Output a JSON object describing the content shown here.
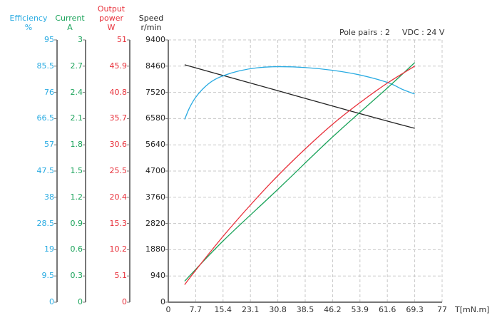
{
  "chart_data": {
    "type": "line",
    "title": "",
    "annotations": {
      "pole_pairs": "Pole pairs : 2",
      "vdc": "VDC : 24 V"
    },
    "xlabel": "T[mN.m]",
    "x_ticks": [
      "0",
      "7.7",
      "15.4",
      "23.1",
      "30.8",
      "38.5",
      "46.2",
      "53.9",
      "61.6",
      "69.3",
      "77"
    ],
    "xlim": [
      0,
      77
    ],
    "grid": true,
    "axes": [
      {
        "id": "efficiency",
        "title": [
          "Efficiency",
          "%"
        ],
        "color": "#29abe2",
        "max": 95,
        "ticks": [
          "0",
          "9.5",
          "19",
          "28.5",
          "38",
          "47.5",
          "57",
          "66.5",
          "76",
          "85.5",
          "95"
        ]
      },
      {
        "id": "current",
        "title": [
          "Current",
          "A"
        ],
        "color": "#1aa35a",
        "max": 3,
        "ticks": [
          "0",
          "0.3",
          "0.6",
          "0.9",
          "1.2",
          "1.5",
          "1.8",
          "2.1",
          "2.4",
          "2.7",
          "3"
        ]
      },
      {
        "id": "power",
        "title": [
          "Output",
          "power",
          "W"
        ],
        "color": "#e8303a",
        "max": 51,
        "ticks": [
          "0",
          "5.1",
          "10.2",
          "15.3",
          "20.4",
          "25.5",
          "30.6",
          "35.7",
          "40.8",
          "45.9",
          "51"
        ]
      },
      {
        "id": "speed",
        "title": [
          "Speed",
          "r/min"
        ],
        "color": "#222222",
        "max": 9400,
        "ticks": [
          "0",
          "940",
          "1880",
          "2820",
          "3760",
          "4700",
          "5640",
          "6580",
          "7520",
          "8460",
          "9400"
        ]
      }
    ],
    "series": [
      {
        "name": "Speed",
        "axis": "speed",
        "color": "#222222",
        "x": [
          4.6,
          15.4,
          30.8,
          46.2,
          61.6,
          69.3
        ],
        "y": [
          8510,
          8125,
          7580,
          7030,
          6490,
          6230
        ]
      },
      {
        "name": "Efficiency",
        "axis": "efficiency",
        "color": "#29abe2",
        "x": [
          4.6,
          6,
          7.7,
          10,
          12.5,
          15.4,
          20,
          25,
          30.8,
          38.5,
          46.2,
          53.9,
          61.6,
          66,
          69.3
        ],
        "y": [
          66.2,
          70.5,
          74.2,
          77.6,
          80.2,
          82.0,
          83.8,
          84.9,
          85.3,
          85.0,
          84.0,
          82.3,
          79.6,
          77.0,
          75.4
        ]
      },
      {
        "name": "Current",
        "axis": "current",
        "color": "#1aa35a",
        "x": [
          4.6,
          15.4,
          30.8,
          46.2,
          61.6,
          69.3
        ],
        "y": [
          0.24,
          0.7,
          1.29,
          1.89,
          2.45,
          2.74
        ]
      },
      {
        "name": "Output power",
        "axis": "power",
        "color": "#e8303a",
        "x": [
          4.6,
          7.7,
          15.4,
          23.1,
          30.8,
          38.5,
          46.2,
          53.9,
          61.6,
          69.3
        ],
        "y": [
          3.4,
          6.2,
          12.8,
          18.9,
          24.6,
          29.8,
          34.6,
          38.8,
          42.6,
          45.9
        ]
      }
    ]
  }
}
